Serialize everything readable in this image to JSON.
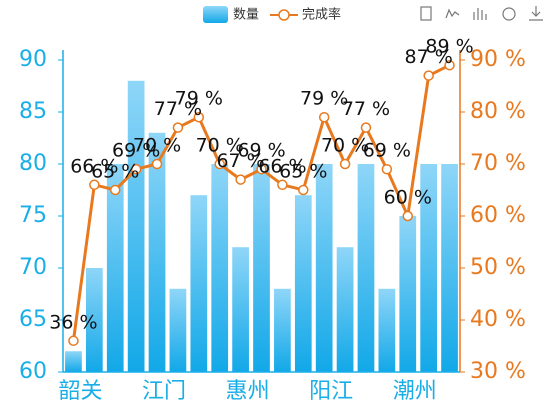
{
  "chart_data": {
    "type": "bar-line",
    "categories": [
      "韶关",
      null,
      null,
      null,
      "江门",
      null,
      null,
      null,
      "惠州",
      null,
      null,
      null,
      "阳江",
      null,
      null,
      null,
      "潮州",
      null,
      null
    ],
    "series": [
      {
        "name": "数量",
        "type": "bar",
        "color": "#16abe9",
        "values": [
          62,
          70,
          80,
          88,
          83,
          68,
          77,
          80,
          72,
          80,
          68,
          77,
          80,
          72,
          80,
          68,
          75,
          80,
          80
        ]
      },
      {
        "name": "完成率",
        "type": "line",
        "axis": "y2",
        "color": "#e8791e",
        "values": [
          36,
          66,
          65,
          69,
          70,
          77,
          79,
          70,
          67,
          69,
          66,
          65,
          79,
          70,
          77,
          69,
          60,
          87,
          89
        ],
        "value_labels": [
          "36 %",
          "66 %",
          "65 %",
          "69 %",
          "70 %",
          "77 %",
          "79 %",
          "70 %",
          "67 %",
          "69 %",
          "66 %",
          "65 %",
          "79 %",
          "70 %",
          "77 %",
          "69 %",
          "60 %",
          "87 %",
          "89 %"
        ]
      }
    ],
    "ylim": [
      60,
      90
    ],
    "yticks": [
      60,
      65,
      70,
      75,
      80,
      85,
      90
    ],
    "y2lim": [
      30,
      90
    ],
    "y2ticks": [
      {
        "value": 30,
        "label": "30 %"
      },
      {
        "value": 40,
        "label": "40 %"
      },
      {
        "value": 50,
        "label": "50 %"
      },
      {
        "value": 60,
        "label": "60 %"
      },
      {
        "value": 70,
        "label": "70 %"
      },
      {
        "value": 80,
        "label": "80 %"
      },
      {
        "value": 90,
        "label": "90 %"
      }
    ],
    "legend": "top"
  }
}
